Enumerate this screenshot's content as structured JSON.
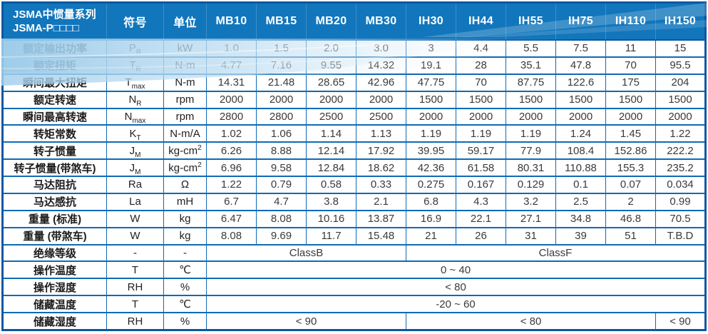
{
  "header": {
    "title_line1": "JSMA中惯量系列",
    "title_line2": "JSMA-P□□□□",
    "symbol_col": "符号",
    "unit_col": "单位",
    "models": [
      "MB10",
      "MB15",
      "MB20",
      "MB30",
      "IH30",
      "IH44",
      "IH55",
      "IH75",
      "IH110",
      "IH150"
    ]
  },
  "colors": {
    "header_blue": "#1276bc",
    "grid_blue": "#0f6ab4",
    "frame_blue": "#0a58a2",
    "swoosh_light_blue": "#aad2ec",
    "text_dark": "#363636"
  },
  "rows": [
    {
      "label": "额定输出功率",
      "symbol": {
        "base": "P",
        "sub": "R"
      },
      "unit": {
        "base": "kW"
      },
      "values": [
        "1.0",
        "1.5",
        "2.0",
        "3.0",
        "3",
        "4.4",
        "5.5",
        "7.5",
        "11",
        "15"
      ]
    },
    {
      "label": "额定扭矩",
      "symbol": {
        "base": "T",
        "sub": "R"
      },
      "unit": {
        "base": "N-m"
      },
      "values": [
        "4.77",
        "7.16",
        "9.55",
        "14.32",
        "19.1",
        "28",
        "35.1",
        "47.8",
        "70",
        "95.5"
      ]
    },
    {
      "label": "瞬间最大扭矩",
      "symbol": {
        "base": "T",
        "sub": "max"
      },
      "unit": {
        "base": "N-m"
      },
      "values": [
        "14.31",
        "21.48",
        "28.65",
        "42.96",
        "47.75",
        "70",
        "87.75",
        "122.6",
        "175",
        "204"
      ]
    },
    {
      "label": "额定转速",
      "symbol": {
        "base": "N",
        "sub": "R"
      },
      "unit": {
        "base": "rpm"
      },
      "values": [
        "2000",
        "2000",
        "2000",
        "2000",
        "1500",
        "1500",
        "1500",
        "1500",
        "1500",
        "1500"
      ]
    },
    {
      "label": "瞬间最高转速",
      "symbol": {
        "base": "N",
        "sub": "max"
      },
      "unit": {
        "base": "rpm"
      },
      "values": [
        "2800",
        "2800",
        "2500",
        "2500",
        "2000",
        "2000",
        "2000",
        "2000",
        "2000",
        "2000"
      ]
    },
    {
      "label": "转矩常数",
      "symbol": {
        "base": "K",
        "sub": "T"
      },
      "unit": {
        "base": "N-m/A"
      },
      "values": [
        "1.02",
        "1.06",
        "1.14",
        "1.13",
        "1.19",
        "1.19",
        "1.19",
        "1.24",
        "1.45",
        "1.22"
      ]
    },
    {
      "label": "转子惯量",
      "symbol": {
        "base": "J",
        "sub": "M"
      },
      "unit": {
        "base": "kg-cm",
        "sup": "2"
      },
      "values": [
        "6.26",
        "8.88",
        "12.14",
        "17.92",
        "39.95",
        "59.17",
        "77.9",
        "108.4",
        "152.86",
        "222.2"
      ]
    },
    {
      "label": "转子惯量(带煞车)",
      "symbol": {
        "base": "J",
        "sub": "M"
      },
      "unit": {
        "base": "kg-cm",
        "sup": "2"
      },
      "values": [
        "6.96",
        "9.58",
        "12.84",
        "18.62",
        "42.36",
        "61.58",
        "80.31",
        "110.88",
        "155.3",
        "235.2"
      ]
    },
    {
      "label": "马达阻抗",
      "symbol": {
        "base": "Ra"
      },
      "unit": {
        "base": "Ω"
      },
      "values": [
        "1.22",
        "0.79",
        "0.58",
        "0.33",
        "0.275",
        "0.167",
        "0.129",
        "0.1",
        "0.07",
        "0.034"
      ]
    },
    {
      "label": "马达感抗",
      "symbol": {
        "base": "La"
      },
      "unit": {
        "base": "mH"
      },
      "values": [
        "6.7",
        "4.7",
        "3.8",
        "2.1",
        "6.8",
        "4.3",
        "3.2",
        "2.5",
        "2",
        "0.99"
      ]
    },
    {
      "label": "重量 (标准)",
      "symbol": {
        "base": "W"
      },
      "unit": {
        "base": "kg"
      },
      "values": [
        "6.47",
        "8.08",
        "10.16",
        "13.87",
        "16.9",
        "22.1",
        "27.1",
        "34.8",
        "46.8",
        "70.5"
      ]
    },
    {
      "label": "重量 (带煞车)",
      "symbol": {
        "base": "W"
      },
      "unit": {
        "base": "kg"
      },
      "values": [
        "8.08",
        "9.69",
        "11.7",
        "15.48",
        "21",
        "26",
        "31",
        "39",
        "51",
        "T.B.D"
      ]
    },
    {
      "label": "绝缘等级",
      "symbol": {
        "base": "-"
      },
      "unit": {
        "base": "-"
      },
      "spans": [
        {
          "text": "ClassB",
          "cols": 4
        },
        {
          "text": "ClassF",
          "cols": 6
        }
      ]
    },
    {
      "label": "操作温度",
      "symbol": {
        "base": "T"
      },
      "unit": {
        "base": "℃"
      },
      "spans": [
        {
          "text": "0 ~ 40",
          "cols": 10
        }
      ]
    },
    {
      "label": "操作湿度",
      "symbol": {
        "base": "RH"
      },
      "unit": {
        "base": "%"
      },
      "spans": [
        {
          "text": "< 80",
          "cols": 10
        }
      ]
    },
    {
      "label": "储藏温度",
      "symbol": {
        "base": "T"
      },
      "unit": {
        "base": "℃"
      },
      "spans": [
        {
          "text": "-20 ~ 60",
          "cols": 10
        }
      ]
    },
    {
      "label": "储藏湿度",
      "symbol": {
        "base": "RH"
      },
      "unit": {
        "base": "%"
      },
      "spans": [
        {
          "text": "< 90",
          "cols": 4
        },
        {
          "text": "< 80",
          "cols": 5
        },
        {
          "text": "< 90",
          "cols": 1
        }
      ]
    }
  ]
}
